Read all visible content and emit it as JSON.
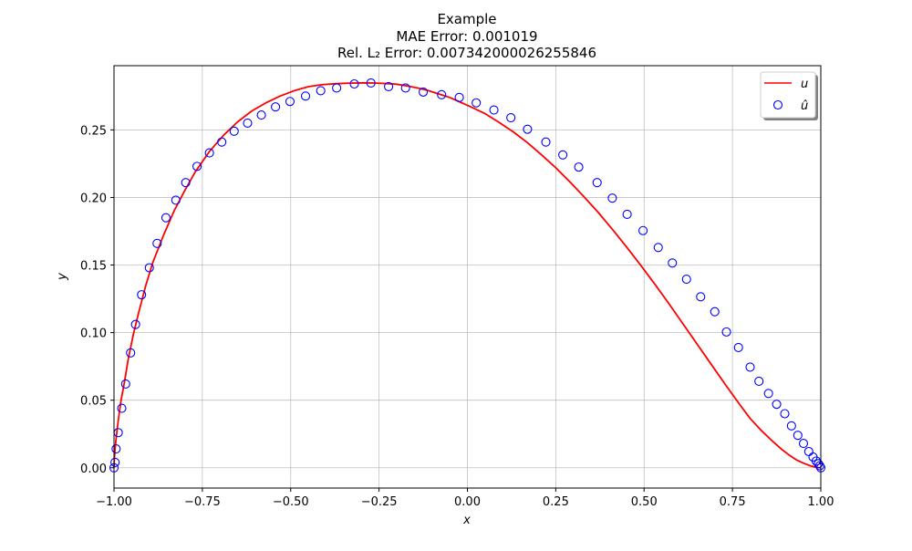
{
  "chart_data": {
    "type": "line",
    "title_lines": [
      "Example",
      "MAE Error: 0.001019",
      "Rel. L₂ Error: 0.007342000026255846"
    ],
    "xlabel": "x",
    "ylabel": "y",
    "xlim": [
      -1.0,
      1.0
    ],
    "ylim": [
      -0.015,
      0.2975
    ],
    "xticks": [
      -1.0,
      -0.75,
      -0.5,
      -0.25,
      0.0,
      0.25,
      0.5,
      0.75,
      1.0
    ],
    "xtick_labels": [
      "−1.00",
      "−0.75",
      "−0.50",
      "−0.25",
      "0.00",
      "0.25",
      "0.50",
      "0.75",
      "1.00"
    ],
    "yticks": [
      0.0,
      0.05,
      0.1,
      0.15,
      0.2,
      0.25
    ],
    "ytick_labels": [
      "0.00",
      "0.05",
      "0.10",
      "0.15",
      "0.20",
      "0.25"
    ],
    "grid": true,
    "legend_position": "top-right",
    "series": [
      {
        "name": "u",
        "kind": "line",
        "color": "#ff0000",
        "x": [
          -1.0,
          -0.999,
          -0.997,
          -0.993,
          -0.988,
          -0.98,
          -0.97,
          -0.96,
          -0.945,
          -0.93,
          -0.91,
          -0.89,
          -0.86,
          -0.83,
          -0.8,
          -0.77,
          -0.73,
          -0.69,
          -0.65,
          -0.61,
          -0.57,
          -0.53,
          -0.49,
          -0.45,
          -0.41,
          -0.37,
          -0.33,
          -0.29,
          -0.26,
          -0.23,
          -0.2,
          -0.17,
          -0.14,
          -0.11,
          -0.08,
          -0.05,
          -0.02,
          0.01,
          0.05,
          0.09,
          0.13,
          0.17,
          0.21,
          0.25,
          0.29,
          0.33,
          0.37,
          0.41,
          0.45,
          0.49,
          0.53,
          0.57,
          0.61,
          0.65,
          0.69,
          0.73,
          0.77,
          0.8,
          0.83,
          0.86,
          0.89,
          0.91,
          0.93,
          0.95,
          0.97,
          0.98,
          0.99,
          0.995,
          1.0
        ],
        "y": [
          0.0,
          0.006,
          0.014,
          0.024,
          0.035,
          0.05,
          0.064,
          0.08,
          0.099,
          0.115,
          0.135,
          0.152,
          0.172,
          0.19,
          0.205,
          0.219,
          0.234,
          0.246,
          0.256,
          0.264,
          0.27,
          0.275,
          0.279,
          0.282,
          0.2835,
          0.2842,
          0.2846,
          0.2848,
          0.2846,
          0.2843,
          0.2838,
          0.2825,
          0.281,
          0.279,
          0.2765,
          0.274,
          0.2705,
          0.267,
          0.262,
          0.2555,
          0.2485,
          0.2405,
          0.2315,
          0.222,
          0.2115,
          0.2005,
          0.189,
          0.1765,
          0.1635,
          0.15,
          0.136,
          0.1215,
          0.1065,
          0.0915,
          0.0765,
          0.0615,
          0.047,
          0.0365,
          0.028,
          0.0205,
          0.0135,
          0.0095,
          0.006,
          0.0035,
          0.0015,
          0.0008,
          0.0003,
          0.0001,
          0.0
        ]
      },
      {
        "name": "û",
        "kind": "scatter",
        "color": "#0000ff",
        "x": [
          -1.0,
          -0.997,
          -0.994,
          -0.988,
          -0.978,
          -0.967,
          -0.953,
          -0.939,
          -0.922,
          -0.9,
          -0.878,
          -0.853,
          -0.825,
          -0.797,
          -0.765,
          -0.73,
          -0.695,
          -0.66,
          -0.622,
          -0.583,
          -0.543,
          -0.502,
          -0.458,
          -0.415,
          -0.37,
          -0.32,
          -0.273,
          -0.223,
          -0.175,
          -0.125,
          -0.073,
          -0.023,
          0.025,
          0.075,
          0.123,
          0.17,
          0.222,
          0.27,
          0.315,
          0.367,
          0.41,
          0.452,
          0.497,
          0.54,
          0.58,
          0.62,
          0.66,
          0.7,
          0.733,
          0.767,
          0.8,
          0.825,
          0.852,
          0.875,
          0.898,
          0.917,
          0.935,
          0.951,
          0.966,
          0.978,
          0.987,
          0.993,
          0.997,
          1.0
        ],
        "y": [
          0.0,
          0.004,
          0.014,
          0.026,
          0.044,
          0.062,
          0.085,
          0.106,
          0.128,
          0.148,
          0.166,
          0.185,
          0.198,
          0.211,
          0.223,
          0.233,
          0.241,
          0.249,
          0.255,
          0.261,
          0.267,
          0.271,
          0.275,
          0.279,
          0.281,
          0.284,
          0.2847,
          0.282,
          0.281,
          0.278,
          0.276,
          0.274,
          0.27,
          0.2647,
          0.259,
          0.2505,
          0.241,
          0.2315,
          0.2225,
          0.211,
          0.1995,
          0.1875,
          0.1755,
          0.163,
          0.1515,
          0.1395,
          0.1265,
          0.1155,
          0.1005,
          0.089,
          0.0745,
          0.064,
          0.055,
          0.047,
          0.04,
          0.031,
          0.024,
          0.018,
          0.012,
          0.008,
          0.005,
          0.003,
          0.0015,
          0.0
        ]
      }
    ]
  }
}
